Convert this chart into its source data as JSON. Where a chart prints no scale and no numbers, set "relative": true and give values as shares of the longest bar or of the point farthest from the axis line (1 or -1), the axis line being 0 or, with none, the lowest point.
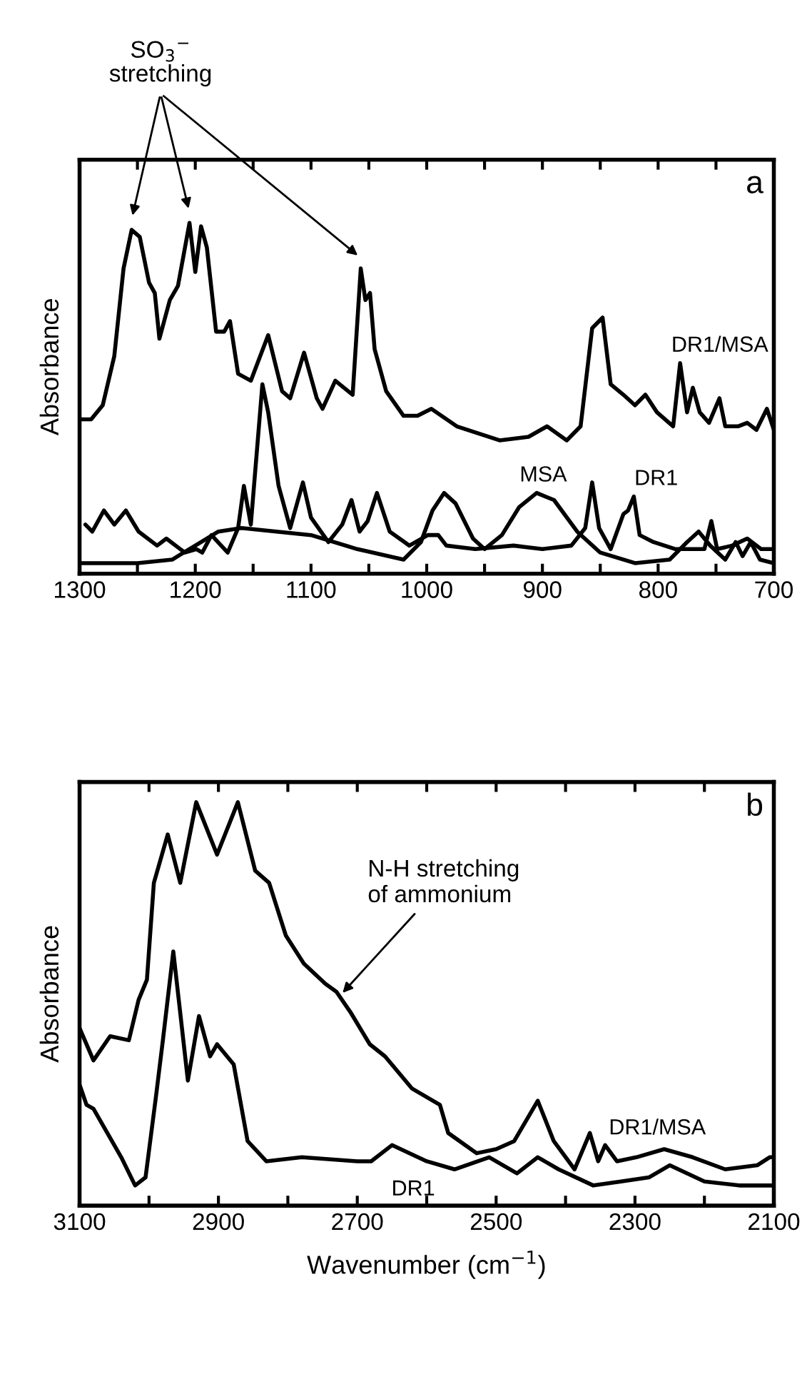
{
  "chart_data": [
    {
      "type": "line",
      "relative": true,
      "ylabel": "Absorbance",
      "xlim": [
        1300,
        700
      ],
      "xticks": [
        1300,
        {
          "value": 1250,
          "label": null
        },
        1200,
        {
          "value": 1150,
          "label": null
        },
        1100,
        {
          "value": 1050,
          "label": null
        },
        1000,
        {
          "value": 950,
          "label": null
        },
        900,
        {
          "value": 850,
          "label": null
        },
        800,
        {
          "value": 750,
          "label": null
        },
        700
      ],
      "grid": false,
      "legend": false,
      "marker": "none",
      "line_style": "solid",
      "annotations": [
        "a",
        "SO$_{3}$$^{−}$\nstretching"
      ],
      "series": [
        {
          "name": "DR1/MSA",
          "color": "#000000",
          "x": [
            1300,
            1290,
            1280,
            1270,
            1262,
            1255,
            1248,
            1240,
            1235,
            1231,
            1222,
            1215,
            1210,
            1205,
            1200,
            1195,
            1190,
            1182,
            1175,
            1170,
            1163,
            1152,
            1137,
            1125,
            1118,
            1106,
            1095,
            1090,
            1079,
            1064,
            1057,
            1053,
            1049,
            1045,
            1035,
            1020,
            1008,
            996,
            974,
            937,
            912,
            896,
            879,
            867,
            857,
            848,
            841,
            830,
            820,
            811,
            801,
            787,
            781,
            775,
            770,
            764,
            756,
            747,
            742,
            731,
            723,
            715,
            706,
            700
          ],
          "values": [
            0.44,
            0.44,
            0.48,
            0.62,
            0.87,
            0.98,
            0.96,
            0.83,
            0.8,
            0.67,
            0.78,
            0.82,
            0.91,
            1.0,
            0.86,
            0.99,
            0.93,
            0.69,
            0.69,
            0.72,
            0.57,
            0.55,
            0.68,
            0.52,
            0.5,
            0.63,
            0.5,
            0.47,
            0.55,
            0.51,
            0.87,
            0.78,
            0.8,
            0.64,
            0.52,
            0.45,
            0.45,
            0.47,
            0.42,
            0.38,
            0.39,
            0.42,
            0.38,
            0.42,
            0.7,
            0.73,
            0.54,
            0.51,
            0.48,
            0.51,
            0.46,
            0.42,
            0.6,
            0.46,
            0.53,
            0.46,
            0.43,
            0.5,
            0.42,
            0.42,
            0.43,
            0.41,
            0.47,
            0.41
          ]
        },
        {
          "name": "DR1",
          "color": "#000000",
          "x": [
            1295,
            1289,
            1279,
            1270,
            1260,
            1249,
            1233,
            1225,
            1209,
            1199,
            1194,
            1186,
            1172,
            1163,
            1158,
            1152,
            1142,
            1137,
            1128,
            1118,
            1107,
            1100,
            1085,
            1073,
            1065,
            1058,
            1051,
            1043,
            1032,
            1015,
            999,
            990,
            983,
            958,
            925,
            900,
            875,
            863,
            857,
            851,
            841,
            830,
            826,
            821,
            816,
            804,
            785,
            760,
            754,
            749,
            736,
            723,
            711,
            700
          ],
          "values": [
            0.14,
            0.12,
            0.18,
            0.14,
            0.18,
            0.12,
            0.08,
            0.1,
            0.06,
            0.07,
            0.06,
            0.11,
            0.06,
            0.13,
            0.25,
            0.14,
            0.54,
            0.46,
            0.25,
            0.13,
            0.26,
            0.16,
            0.09,
            0.14,
            0.21,
            0.12,
            0.15,
            0.23,
            0.12,
            0.08,
            0.11,
            0.11,
            0.08,
            0.07,
            0.08,
            0.07,
            0.08,
            0.13,
            0.26,
            0.13,
            0.07,
            0.17,
            0.18,
            0.22,
            0.11,
            0.09,
            0.07,
            0.07,
            0.15,
            0.07,
            0.08,
            0.1,
            0.07,
            0.07
          ]
        },
        {
          "name": "MSA",
          "color": "#000000",
          "x": [
            1300,
            1250,
            1220,
            1200,
            1180,
            1160,
            1130,
            1100,
            1060,
            1020,
            1005,
            995,
            985,
            975,
            960,
            950,
            935,
            920,
            905,
            890,
            870,
            850,
            820,
            790,
            775,
            765,
            755,
            742,
            733,
            727,
            720,
            712,
            700
          ],
          "values": [
            0.03,
            0.03,
            0.04,
            0.08,
            0.12,
            0.13,
            0.12,
            0.11,
            0.07,
            0.04,
            0.09,
            0.18,
            0.23,
            0.2,
            0.1,
            0.07,
            0.11,
            0.19,
            0.23,
            0.21,
            0.12,
            0.06,
            0.03,
            0.04,
            0.09,
            0.12,
            0.08,
            0.04,
            0.09,
            0.05,
            0.09,
            0.04,
            0.03
          ]
        }
      ]
    },
    {
      "type": "line",
      "relative": true,
      "ylabel": "Absorbance",
      "xlabel": "Wavenumber (cm$^{−1}$)",
      "xlim": [
        3100,
        2100
      ],
      "xticks": [
        3100,
        {
          "value": 3000,
          "label": null
        },
        2900,
        {
          "value": 2800,
          "label": null
        },
        2700,
        {
          "value": 2600,
          "label": null
        },
        2500,
        {
          "value": 2400,
          "label": null
        },
        2300,
        {
          "value": 2200,
          "label": null
        },
        2100
      ],
      "grid": false,
      "legend": false,
      "marker": "none",
      "line_style": "solid",
      "annotations": [
        "b",
        {
          "text": "N-H stretching\nof ammonium",
          "x": 2725,
          "y": 0.52
        }
      ],
      "series": [
        {
          "name": "DR1/MSA",
          "color": "#000000",
          "x": [
            3100,
            3080,
            3056,
            3029,
            3015,
            3003,
            2993,
            2973,
            2955,
            2932,
            2902,
            2872,
            2847,
            2827,
            2803,
            2777,
            2746,
            2730,
            2710,
            2682,
            2660,
            2621,
            2581,
            2569,
            2528,
            2500,
            2474,
            2440,
            2417,
            2387,
            2365,
            2353,
            2343,
            2326,
            2298,
            2258,
            2217,
            2170,
            2124,
            2106,
            2100
          ],
          "values": [
            0.44,
            0.36,
            0.42,
            0.41,
            0.51,
            0.56,
            0.8,
            0.92,
            0.8,
            1.0,
            0.87,
            1.0,
            0.83,
            0.8,
            0.67,
            0.6,
            0.55,
            0.53,
            0.48,
            0.4,
            0.37,
            0.29,
            0.25,
            0.18,
            0.13,
            0.14,
            0.16,
            0.26,
            0.16,
            0.09,
            0.18,
            0.11,
            0.15,
            0.11,
            0.12,
            0.14,
            0.12,
            0.09,
            0.1,
            0.12,
            0.12
          ]
        },
        {
          "name": "DR1",
          "color": "#000000",
          "x": [
            3100,
            3090,
            3080,
            3060,
            3040,
            3020,
            3005,
            2990,
            2980,
            2965,
            2944,
            2928,
            2912,
            2902,
            2878,
            2858,
            2831,
            2780,
            2700,
            2680,
            2650,
            2600,
            2560,
            2510,
            2470,
            2440,
            2410,
            2360,
            2320,
            2280,
            2250,
            2200,
            2150,
            2100
          ],
          "values": [
            0.3,
            0.25,
            0.24,
            0.18,
            0.12,
            0.05,
            0.07,
            0.27,
            0.41,
            0.63,
            0.31,
            0.47,
            0.37,
            0.4,
            0.35,
            0.16,
            0.11,
            0.12,
            0.11,
            0.11,
            0.15,
            0.11,
            0.09,
            0.12,
            0.08,
            0.12,
            0.09,
            0.05,
            0.06,
            0.07,
            0.1,
            0.06,
            0.05,
            0.05
          ]
        }
      ]
    }
  ]
}
